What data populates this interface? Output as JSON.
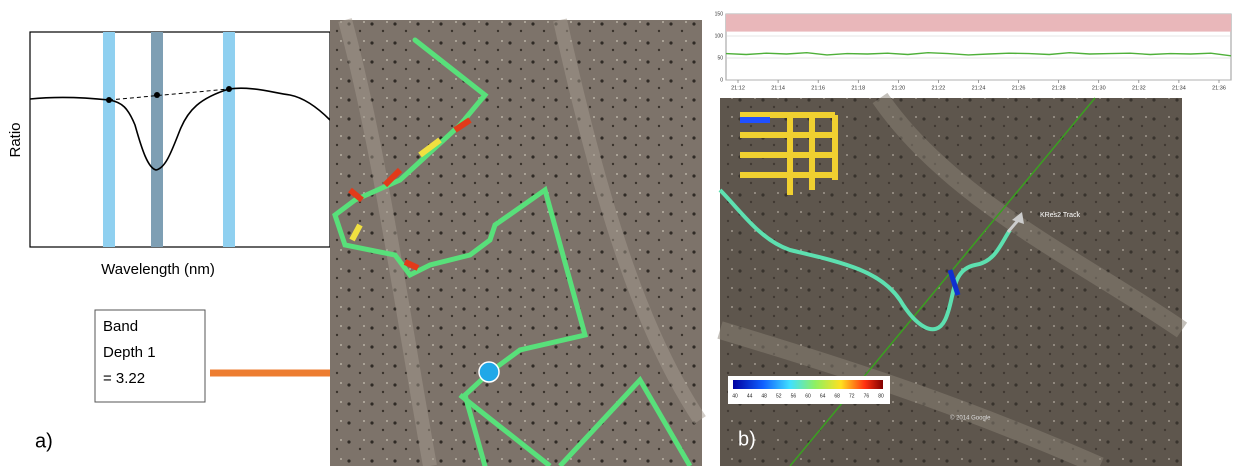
{
  "panel_a": {
    "label": "a)",
    "spectrum": {
      "y_label": "Ratio",
      "x_label": "Wavelength (nm)"
    },
    "callout": {
      "lines": [
        "Band",
        "Depth 1",
        "= 3.22"
      ]
    }
  },
  "panel_b": {
    "label": "b)",
    "timeseries": {
      "type": "line",
      "color": "#4fb03a",
      "alert_range": [
        110,
        150
      ],
      "alert_color": "#e9b7ba",
      "ylim": [
        0,
        150
      ],
      "yticks": [
        0,
        50,
        100,
        150
      ],
      "xticks": [
        "21:12",
        "21:14",
        "21:16",
        "21:18",
        "21:20",
        "21:22",
        "21:24",
        "21:26",
        "21:28",
        "21:30",
        "21:32",
        "21:34",
        "21:36"
      ],
      "values": [
        60,
        58,
        61,
        59,
        62,
        57,
        60,
        59,
        61,
        58,
        62,
        60,
        57,
        59,
        61,
        60,
        58,
        62,
        59,
        60,
        61,
        58,
        60,
        59,
        61,
        55
      ]
    },
    "colorbar": {
      "ticks": [
        40,
        44,
        48,
        52,
        56,
        60,
        64,
        68,
        72,
        76,
        80
      ]
    },
    "track_label": "KRes2 Track",
    "copyright": "© 2014 Google"
  }
}
